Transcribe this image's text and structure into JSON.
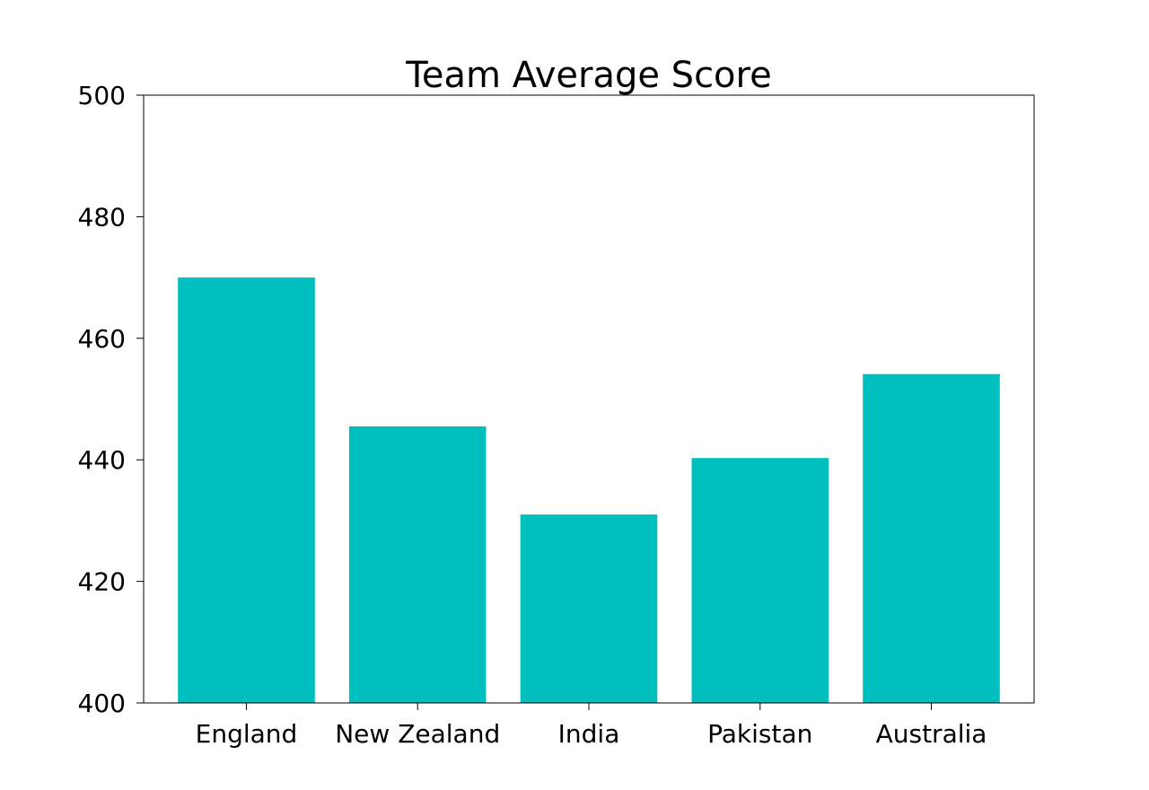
{
  "chart_data": {
    "type": "bar",
    "title": "Team Average Score",
    "xlabel": "",
    "ylabel": "",
    "categories": [
      "England",
      "New Zealand",
      "India",
      "Pakistan",
      "Australia"
    ],
    "values": [
      470,
      445.5,
      431,
      440.3,
      454.1
    ],
    "ylim": [
      400,
      500
    ],
    "yticks": [
      400,
      420,
      440,
      460,
      480,
      500
    ],
    "ytick_labels": [
      "400",
      "420",
      "440",
      "460",
      "480",
      "500"
    ],
    "grid": false,
    "legend": "none",
    "colors": {
      "bar": "#00BFBF",
      "axis": "#000000",
      "text": "#000000"
    }
  }
}
